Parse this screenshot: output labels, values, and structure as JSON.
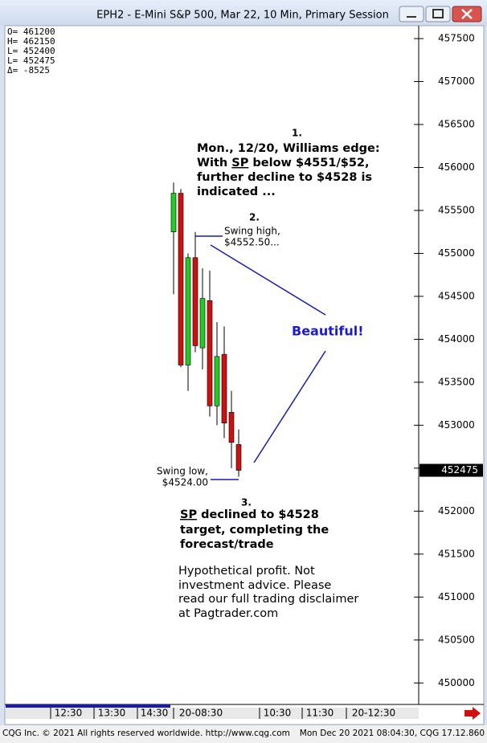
{
  "chart_data": {
    "type": "candlestick",
    "title": "EPH2 - E-Mini S&P 500, Mar 22, 10 Min, Primary Session",
    "ohlc_box": [
      "O= 461200",
      "H= 462150",
      "L= 452400",
      "L= 452475",
      "Δ=   -8525"
    ],
    "open": [
      455250,
      455700,
      453700,
      454950,
      453900,
      454450,
      453225,
      453825,
      453150,
      452775
    ],
    "high": [
      455825,
      455750,
      455000,
      455250,
      454825,
      454800,
      454200,
      454150,
      453400,
      452950
    ],
    "low": [
      454525,
      453675,
      453400,
      453850,
      453650,
      453100,
      453000,
      452850,
      452500,
      452400
    ],
    "close": [
      455700,
      453700,
      454950,
      453925,
      454475,
      453225,
      453800,
      453025,
      452800,
      452475
    ],
    "colors": {
      "up": "#22cc22",
      "down": "#cc1111"
    },
    "ylim": [
      449750,
      457650
    ],
    "yticks": [
      450000,
      450500,
      451000,
      451500,
      452000,
      452500,
      453000,
      453500,
      454000,
      454500,
      455000,
      455500,
      456000,
      456500,
      457000,
      457500
    ],
    "xticklabels": [
      "12:30",
      "13:30",
      "14:30",
      "20-08:30",
      "10:30",
      "11:30",
      "20-12:30"
    ],
    "last": 452475,
    "annotations": {
      "n1": "1.",
      "edge": [
        "Mon., 12/20, Williams edge:",
        [
          "With ",
          "SP",
          " below $4551/$52,"
        ],
        "further decline to $4528 is",
        "indicated ..."
      ],
      "n2": "2.",
      "swing_high": [
        "Swing high,",
        "$4552.50..."
      ],
      "beautiful": "Beautiful!",
      "swing_low": [
        "Swing low,",
        "$4524.00"
      ],
      "n3": "3.",
      "result": [
        [
          "SP",
          " declined to $4528"
        ],
        "target, completing the",
        "forecast/trade"
      ],
      "disclaimer": [
        "Hypothetical profit. Not",
        "investment advice. Please",
        "read our full trading disclaimer",
        "at Pagtrader.com"
      ]
    }
  },
  "footer": {
    "left": "CQG Inc. © 2021 All rights reserved worldwide. http://www.cqg.com",
    "right": "Mon Dec 20 2021 08:04:30, CQG 17.12.860"
  }
}
